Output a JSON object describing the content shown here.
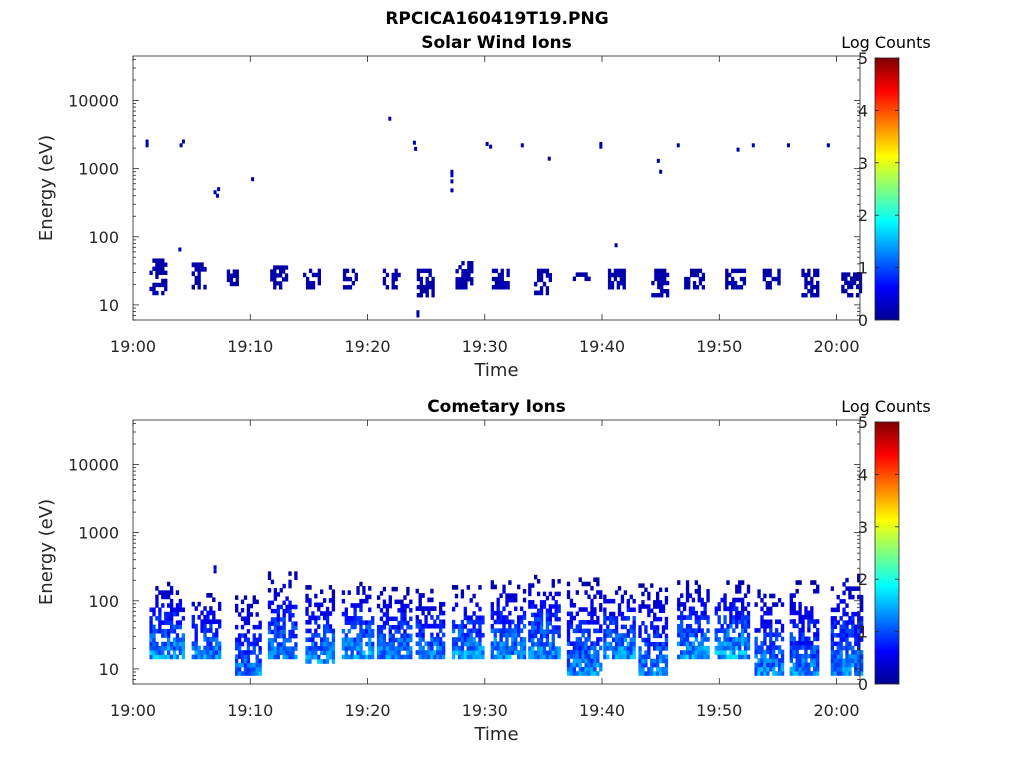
{
  "figure": {
    "title": "RPCICA160419T19.PNG"
  },
  "chart_data": [
    {
      "type": "heatmap",
      "title": "Solar Wind Ions",
      "xlabel": "Time",
      "ylabel": "Energy (eV)",
      "x_unit": "minutes after 19:00",
      "xlim": [
        "19:00",
        "20:02"
      ],
      "x_ticks": [
        "19:00",
        "19:10",
        "19:20",
        "19:30",
        "19:40",
        "19:50",
        "20:00"
      ],
      "y_scale": "log",
      "ylim": [
        6,
        45000
      ],
      "y_ticks": [
        "10",
        "100",
        "1000",
        "10000"
      ],
      "colorbar": {
        "title": "Log Counts",
        "range": [
          0,
          5
        ],
        "ticks": [
          "0",
          "1",
          "2",
          "3",
          "4",
          "5"
        ],
        "colormap": "jet"
      },
      "grid": false,
      "bursts": [
        {
          "t": 1.4,
          "w": 1.5,
          "e": [
            14,
            48
          ],
          "z": 0.2
        },
        {
          "t": 5.0,
          "w": 1.2,
          "e": [
            17,
            42
          ],
          "z": 0.2
        },
        {
          "t": 8.0,
          "w": 1.0,
          "e": [
            19,
            38
          ],
          "z": 0.2
        },
        {
          "t": 11.7,
          "w": 1.3,
          "e": [
            17,
            38
          ],
          "z": 0.2
        },
        {
          "t": 14.5,
          "w": 1.3,
          "e": [
            17,
            34
          ],
          "z": 0.2
        },
        {
          "t": 17.9,
          "w": 1.2,
          "e": [
            17,
            34
          ],
          "z": 0.2
        },
        {
          "t": 21.3,
          "w": 1.3,
          "e": [
            17,
            34
          ],
          "z": 0.2
        },
        {
          "t": 24.2,
          "w": 1.5,
          "e": [
            13,
            34
          ],
          "z": 0.2
        },
        {
          "t": 27.5,
          "w": 1.4,
          "e": [
            17,
            44
          ],
          "z": 0.2
        },
        {
          "t": 30.6,
          "w": 1.5,
          "e": [
            17,
            34
          ],
          "z": 0.2
        },
        {
          "t": 34.2,
          "w": 1.4,
          "e": [
            14,
            34
          ],
          "z": 0.2
        },
        {
          "t": 37.5,
          "w": 1.3,
          "e": [
            17,
            30
          ],
          "z": 0.2
        },
        {
          "t": 40.5,
          "w": 1.5,
          "e": [
            17,
            34
          ],
          "z": 0.2
        },
        {
          "t": 44.2,
          "w": 1.4,
          "e": [
            13,
            34
          ],
          "z": 0.2
        },
        {
          "t": 47.0,
          "w": 1.6,
          "e": [
            17,
            34
          ],
          "z": 0.2
        },
        {
          "t": 50.5,
          "w": 1.6,
          "e": [
            17,
            34
          ],
          "z": 0.2
        },
        {
          "t": 53.7,
          "w": 1.3,
          "e": [
            17,
            34
          ],
          "z": 0.2
        },
        {
          "t": 57.0,
          "w": 1.4,
          "e": [
            13,
            34
          ],
          "z": 0.2
        },
        {
          "t": 60.4,
          "w": 1.7,
          "e": [
            13,
            30
          ],
          "z": 0.2
        }
      ],
      "points": [
        {
          "t": 1.2,
          "e": 2200,
          "z": 0.2
        },
        {
          "t": 1.2,
          "e": 2500,
          "z": 0.2
        },
        {
          "t": 4.1,
          "e": 2200,
          "z": 0.2
        },
        {
          "t": 4.3,
          "e": 2500,
          "z": 0.2
        },
        {
          "t": 4.0,
          "e": 65,
          "z": 0.2
        },
        {
          "t": 7.2,
          "e": 400,
          "z": 0.2
        },
        {
          "t": 7.3,
          "e": 500,
          "z": 0.2
        },
        {
          "t": 7.0,
          "e": 450,
          "z": 0.2
        },
        {
          "t": 10.2,
          "e": 700,
          "z": 0.2
        },
        {
          "t": 21.9,
          "e": 5400,
          "z": 0.2
        },
        {
          "t": 24.0,
          "e": 2400,
          "z": 0.2
        },
        {
          "t": 24.1,
          "e": 1950,
          "z": 0.2
        },
        {
          "t": 24.3,
          "e": 7,
          "z": 0.2
        },
        {
          "t": 24.3,
          "e": 7.8,
          "z": 0.2
        },
        {
          "t": 27.2,
          "e": 900,
          "z": 0.2
        },
        {
          "t": 27.2,
          "e": 650,
          "z": 0.2
        },
        {
          "t": 27.2,
          "e": 480,
          "z": 0.2
        },
        {
          "t": 27.2,
          "e": 800,
          "z": 0.2
        },
        {
          "t": 30.2,
          "e": 2300,
          "z": 0.2
        },
        {
          "t": 30.5,
          "e": 2100,
          "z": 0.2
        },
        {
          "t": 33.2,
          "e": 2200,
          "z": 0.2
        },
        {
          "t": 35.5,
          "e": 1400,
          "z": 0.2
        },
        {
          "t": 39.9,
          "e": 2300,
          "z": 0.2
        },
        {
          "t": 39.9,
          "e": 2100,
          "z": 0.2
        },
        {
          "t": 41.2,
          "e": 75,
          "z": 0.2
        },
        {
          "t": 44.8,
          "e": 1300,
          "z": 0.2
        },
        {
          "t": 45.0,
          "e": 900,
          "z": 0.2
        },
        {
          "t": 46.5,
          "e": 2200,
          "z": 0.2
        },
        {
          "t": 51.6,
          "e": 1900,
          "z": 0.2
        },
        {
          "t": 52.9,
          "e": 2200,
          "z": 0.2
        },
        {
          "t": 55.9,
          "e": 2200,
          "z": 0.2
        },
        {
          "t": 59.3,
          "e": 2200,
          "z": 0.2
        }
      ]
    },
    {
      "type": "heatmap",
      "title": "Cometary Ions",
      "xlabel": "Time",
      "ylabel": "Energy (eV)",
      "x_unit": "minutes after 19:00",
      "xlim": [
        "19:00",
        "20:02"
      ],
      "x_ticks": [
        "19:00",
        "19:10",
        "19:20",
        "19:30",
        "19:40",
        "19:50",
        "20:00"
      ],
      "y_scale": "log",
      "ylim": [
        6,
        45000
      ],
      "y_ticks": [
        "10",
        "100",
        "1000",
        "10000"
      ],
      "colorbar": {
        "title": "Log Counts",
        "range": [
          0,
          5
        ],
        "ticks": [
          "0",
          "1",
          "2",
          "3",
          "4",
          "5"
        ],
        "colormap": "jet"
      },
      "grid": false,
      "bursts": [
        {
          "t": 1.4,
          "w": 2.8,
          "e": [
            14,
            190
          ],
          "z": 1.7
        },
        {
          "t": 5.0,
          "w": 2.3,
          "e": [
            14,
            130
          ],
          "z": 1.6
        },
        {
          "t": 8.7,
          "w": 2.2,
          "e": [
            8,
            120
          ],
          "z": 1.5
        },
        {
          "t": 11.5,
          "w": 2.5,
          "e": [
            14,
            270
          ],
          "z": 1.6
        },
        {
          "t": 14.7,
          "w": 2.5,
          "e": [
            12,
            170
          ],
          "z": 1.6
        },
        {
          "t": 17.8,
          "w": 2.6,
          "e": [
            14,
            190
          ],
          "z": 1.7
        },
        {
          "t": 20.8,
          "w": 2.8,
          "e": [
            14,
            160
          ],
          "z": 1.6
        },
        {
          "t": 24.1,
          "w": 2.5,
          "e": [
            14,
            150
          ],
          "z": 1.6
        },
        {
          "t": 27.2,
          "w": 2.6,
          "e": [
            14,
            170
          ],
          "z": 1.7
        },
        {
          "t": 30.5,
          "w": 2.8,
          "e": [
            14,
            200
          ],
          "z": 1.7
        },
        {
          "t": 33.7,
          "w": 2.6,
          "e": [
            14,
            240
          ],
          "z": 1.7
        },
        {
          "t": 37.0,
          "w": 2.8,
          "e": [
            8,
            220
          ],
          "z": 1.6
        },
        {
          "t": 40.1,
          "w": 2.6,
          "e": [
            14,
            190
          ],
          "z": 1.7
        },
        {
          "t": 43.1,
          "w": 2.5,
          "e": [
            8,
            180
          ],
          "z": 1.6
        },
        {
          "t": 46.4,
          "w": 2.6,
          "e": [
            14,
            200
          ],
          "z": 1.7
        },
        {
          "t": 49.6,
          "w": 2.8,
          "e": [
            14,
            200
          ],
          "z": 1.8
        },
        {
          "t": 53.0,
          "w": 2.5,
          "e": [
            8,
            170
          ],
          "z": 1.6
        },
        {
          "t": 56.0,
          "w": 2.5,
          "e": [
            8,
            200
          ],
          "z": 1.6
        },
        {
          "t": 59.5,
          "w": 2.6,
          "e": [
            8,
            250
          ],
          "z": 1.6
        }
      ],
      "points": [
        {
          "t": 7.0,
          "e": 310,
          "z": 0.3
        },
        {
          "t": 7.0,
          "e": 270,
          "z": 0.3
        }
      ]
    }
  ]
}
